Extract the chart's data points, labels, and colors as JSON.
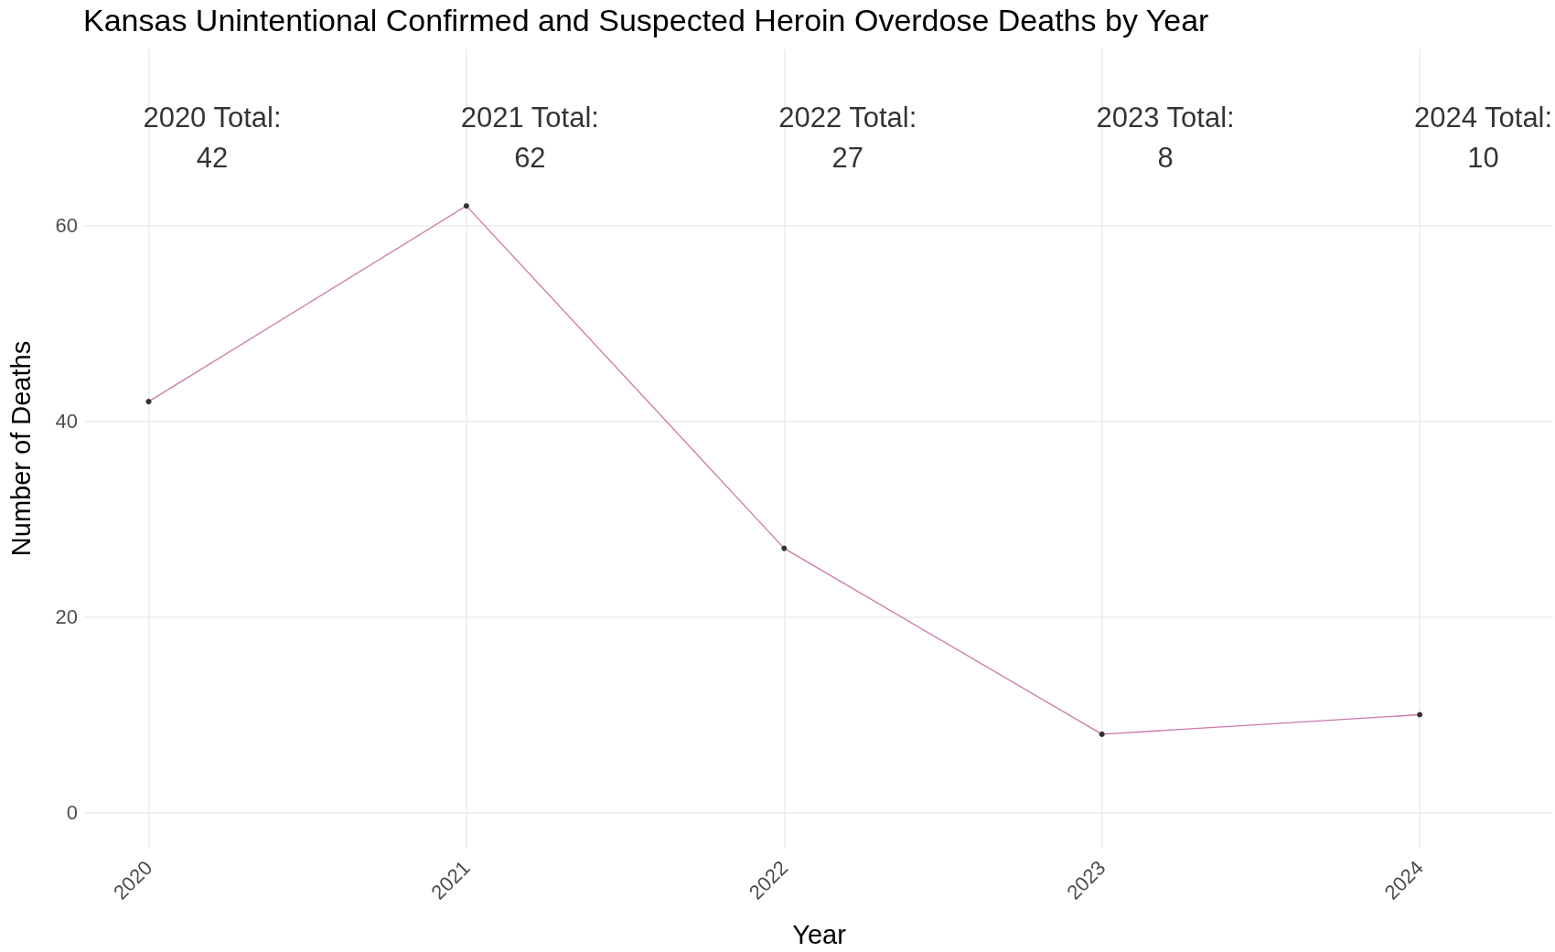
{
  "chart_data": {
    "type": "line",
    "title": "Kansas Unintentional Confirmed and Suspected Heroin Overdose Deaths by Year",
    "xlabel": "Year",
    "ylabel": "Number of Deaths",
    "x": [
      2020,
      2021,
      2022,
      2023,
      2024
    ],
    "series": [
      {
        "color": "#cc79a7",
        "values": [
          42,
          62,
          27,
          8,
          10
        ]
      }
    ],
    "xlim": [
      2019.8,
      2024.42
    ],
    "xticks": [
      2020,
      2021,
      2022,
      2023,
      2024
    ],
    "ylim": [
      -3.6,
      78
    ],
    "yticks": [
      0,
      20,
      40,
      60
    ],
    "annotations": [
      "2020 Total:\n42",
      "2021 Total:\n62",
      "2022 Total:\n27",
      "2023 Total:\n8",
      "2024 Total:\n10"
    ],
    "grid": true,
    "marker": "circle",
    "line_style": "solid"
  }
}
